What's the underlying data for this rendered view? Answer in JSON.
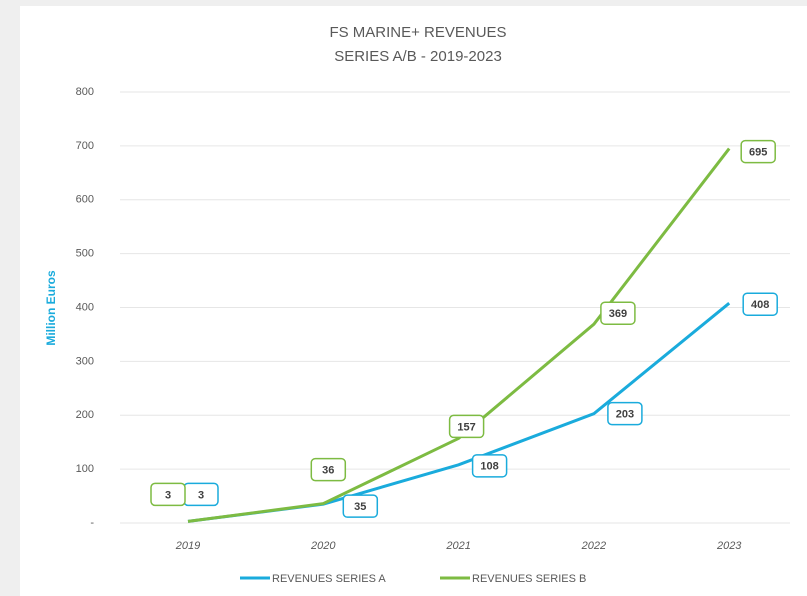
{
  "chart_data": {
    "type": "line",
    "title": "FS MARINE+ REVENUES",
    "subtitle": "SERIES A/B - 2019-2023",
    "y_label": "Million Euros",
    "categories": [
      "2019",
      "2020",
      "2021",
      "2022",
      "2023"
    ],
    "series": [
      {
        "name": "REVENUES SERIES A",
        "color": "#1aabdc",
        "values": [
          3,
          35,
          108,
          203,
          408
        ]
      },
      {
        "name": "REVENUES SERIES B",
        "color": "#7dbb42",
        "values": [
          3,
          36,
          157,
          369,
          695
        ]
      }
    ],
    "ylim": [
      0,
      800
    ],
    "yticks": [
      {
        "value": 0,
        "label": "-"
      },
      100,
      200,
      300,
      400,
      500,
      600,
      700,
      800
    ],
    "grid": true,
    "legend": "bottom"
  }
}
